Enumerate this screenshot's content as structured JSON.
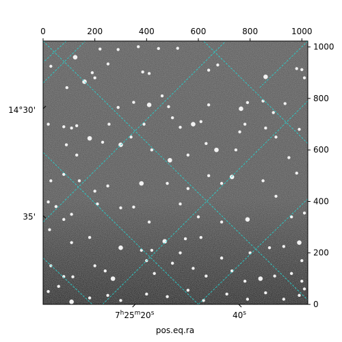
{
  "chart_data": {
    "type": "image",
    "pixel_axes": {
      "x_ticks": [
        0,
        200,
        400,
        600,
        800,
        1000
      ],
      "y_ticks": [
        0,
        200,
        400,
        600,
        800,
        1000
      ],
      "x_range": [
        0,
        1023
      ],
      "y_range": [
        0,
        1023
      ]
    },
    "world_axes": {
      "ra_label": "pos.eq.ra",
      "ra_ticks": [
        {
          "text_h": "7",
          "sup_h": "h",
          "text_m": "25",
          "sup_m": "m",
          "text_s": "20",
          "sup_s": "s",
          "x_pix": 356
        },
        {
          "text_s": "40",
          "sup_s": "s",
          "x_pix": 756
        }
      ],
      "dec_ticks": [
        {
          "text": "14°30'",
          "y_pix": 760
        },
        {
          "text": "35'",
          "y_pix": 345
        }
      ]
    },
    "grid_color": "#26d3cf",
    "stars": [
      [
        124,
        960,
        3
      ],
      [
        220,
        992,
        2
      ],
      [
        290,
        990,
        2
      ],
      [
        368,
        1001,
        2
      ],
      [
        446,
        994,
        2
      ],
      [
        520,
        995,
        2
      ],
      [
        30,
        925,
        2
      ],
      [
        160,
        865,
        3
      ],
      [
        200,
        880,
        2
      ],
      [
        251,
        934,
        2
      ],
      [
        385,
        903,
        2
      ],
      [
        410,
        897,
        2
      ],
      [
        640,
        910,
        2
      ],
      [
        675,
        930,
        2
      ],
      [
        860,
        884,
        3
      ],
      [
        980,
        916,
        2
      ],
      [
        1000,
        912,
        2
      ],
      [
        1010,
        880,
        2
      ],
      [
        92,
        842,
        2
      ],
      [
        190,
        900,
        2
      ],
      [
        350,
        785,
        2
      ],
      [
        410,
        775,
        3
      ],
      [
        460,
        810,
        2
      ],
      [
        485,
        768,
        2
      ],
      [
        640,
        775,
        2
      ],
      [
        765,
        760,
        3
      ],
      [
        790,
        784,
        2
      ],
      [
        850,
        790,
        2
      ],
      [
        890,
        745,
        2
      ],
      [
        935,
        780,
        2
      ],
      [
        20,
        700,
        2
      ],
      [
        80,
        690,
        2
      ],
      [
        110,
        685,
        2
      ],
      [
        130,
        694,
        2
      ],
      [
        255,
        700,
        2
      ],
      [
        290,
        765,
        2
      ],
      [
        390,
        700,
        2
      ],
      [
        500,
        725,
        2
      ],
      [
        530,
        688,
        2
      ],
      [
        580,
        700,
        3
      ],
      [
        610,
        710,
        2
      ],
      [
        760,
        670,
        2
      ],
      [
        780,
        700,
        2
      ],
      [
        860,
        685,
        2
      ],
      [
        900,
        650,
        2
      ],
      [
        950,
        570,
        2
      ],
      [
        990,
        680,
        2
      ],
      [
        180,
        645,
        3
      ],
      [
        230,
        630,
        2
      ],
      [
        300,
        620,
        3
      ],
      [
        340,
        650,
        2
      ],
      [
        420,
        600,
        2
      ],
      [
        490,
        560,
        3
      ],
      [
        560,
        580,
        2
      ],
      [
        630,
        625,
        2
      ],
      [
        670,
        600,
        3
      ],
      [
        745,
        600,
        2
      ],
      [
        90,
        620,
        2
      ],
      [
        130,
        580,
        2
      ],
      [
        30,
        480,
        2
      ],
      [
        80,
        505,
        2
      ],
      [
        140,
        480,
        2
      ],
      [
        200,
        440,
        2
      ],
      [
        250,
        460,
        2
      ],
      [
        380,
        470,
        3
      ],
      [
        480,
        470,
        2
      ],
      [
        560,
        450,
        2
      ],
      [
        640,
        500,
        2
      ],
      [
        690,
        470,
        2
      ],
      [
        730,
        495,
        3
      ],
      [
        850,
        480,
        2
      ],
      [
        980,
        510,
        2
      ],
      [
        20,
        398,
        2
      ],
      [
        50,
        380,
        2
      ],
      [
        80,
        330,
        2
      ],
      [
        110,
        350,
        2
      ],
      [
        210,
        390,
        2
      ],
      [
        300,
        375,
        2
      ],
      [
        350,
        378,
        2
      ],
      [
        410,
        320,
        2
      ],
      [
        530,
        390,
        2
      ],
      [
        600,
        340,
        2
      ],
      [
        690,
        320,
        2
      ],
      [
        790,
        330,
        3
      ],
      [
        900,
        420,
        2
      ],
      [
        960,
        340,
        2
      ],
      [
        1010,
        355,
        2
      ],
      [
        25,
        290,
        2
      ],
      [
        110,
        240,
        2
      ],
      [
        180,
        260,
        2
      ],
      [
        300,
        220,
        3
      ],
      [
        380,
        210,
        2
      ],
      [
        420,
        210,
        2
      ],
      [
        470,
        245,
        3
      ],
      [
        530,
        200,
        2
      ],
      [
        550,
        255,
        2
      ],
      [
        610,
        260,
        2
      ],
      [
        690,
        180,
        2
      ],
      [
        800,
        200,
        2
      ],
      [
        875,
        220,
        2
      ],
      [
        930,
        225,
        2
      ],
      [
        990,
        240,
        3
      ],
      [
        1000,
        170,
        2
      ],
      [
        30,
        150,
        2
      ],
      [
        80,
        108,
        2
      ],
      [
        115,
        107,
        2
      ],
      [
        200,
        150,
        2
      ],
      [
        240,
        130,
        2
      ],
      [
        270,
        100,
        3
      ],
      [
        400,
        170,
        2
      ],
      [
        430,
        120,
        2
      ],
      [
        500,
        160,
        2
      ],
      [
        580,
        140,
        2
      ],
      [
        630,
        110,
        2
      ],
      [
        690,
        180,
        2
      ],
      [
        730,
        130,
        2
      ],
      [
        780,
        90,
        2
      ],
      [
        840,
        100,
        3
      ],
      [
        895,
        110,
        2
      ],
      [
        960,
        120,
        2
      ],
      [
        1000,
        90,
        2
      ],
      [
        20,
        50,
        2
      ],
      [
        60,
        70,
        2
      ],
      [
        110,
        10,
        3
      ],
      [
        180,
        25,
        2
      ],
      [
        250,
        35,
        2
      ],
      [
        300,
        15,
        2
      ],
      [
        400,
        40,
        2
      ],
      [
        480,
        30,
        2
      ],
      [
        560,
        55,
        2
      ],
      [
        620,
        15,
        2
      ],
      [
        710,
        40,
        2
      ],
      [
        790,
        20,
        2
      ],
      [
        860,
        45,
        2
      ],
      [
        930,
        20,
        2
      ],
      [
        990,
        35,
        2
      ],
      [
        1010,
        60,
        2
      ]
    ]
  }
}
